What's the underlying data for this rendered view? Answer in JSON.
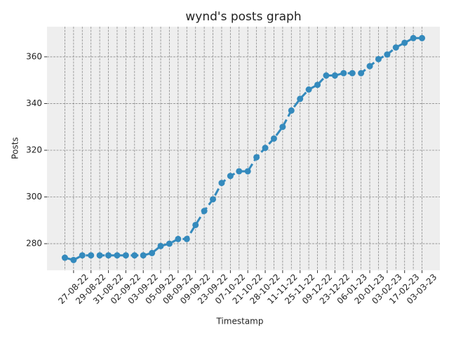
{
  "chart_data": {
    "type": "line",
    "title": "wynd's posts graph",
    "x_label": "Timestamp",
    "y_label": "Posts",
    "categories": [
      null,
      "27-08-22",
      null,
      "29-08-22",
      null,
      "31-08-22",
      null,
      "02-09-22",
      null,
      "03-09-22",
      null,
      "05-09-22",
      null,
      "08-09-22",
      null,
      "09-09-22",
      null,
      "23-09-22",
      null,
      "07-10-22",
      null,
      "21-10-22",
      null,
      "28-10-22",
      null,
      "11-11-22",
      null,
      "25-11-22",
      null,
      "09-12-22",
      null,
      "23-12-22",
      null,
      "06-01-23",
      null,
      "20-01-23",
      null,
      "03-02-23",
      null,
      "17-02-23",
      null,
      "03-03-23"
    ],
    "series": [
      {
        "name": "Posts",
        "color": "#348abd",
        "linestyle": "dashed",
        "values": [
          274,
          273,
          275,
          275,
          275,
          275,
          275,
          275,
          275,
          275,
          276,
          279,
          280,
          282,
          282,
          288,
          294,
          299,
          306,
          309,
          311,
          311,
          317,
          321,
          325,
          330,
          337,
          342,
          346,
          348,
          352,
          352,
          353,
          353,
          353,
          356,
          359,
          361,
          364,
          366,
          368,
          368
        ]
      }
    ],
    "ylim": [
      268.6,
      372.9
    ],
    "yticks": [
      280,
      300,
      320,
      340,
      360
    ],
    "grid": true
  }
}
